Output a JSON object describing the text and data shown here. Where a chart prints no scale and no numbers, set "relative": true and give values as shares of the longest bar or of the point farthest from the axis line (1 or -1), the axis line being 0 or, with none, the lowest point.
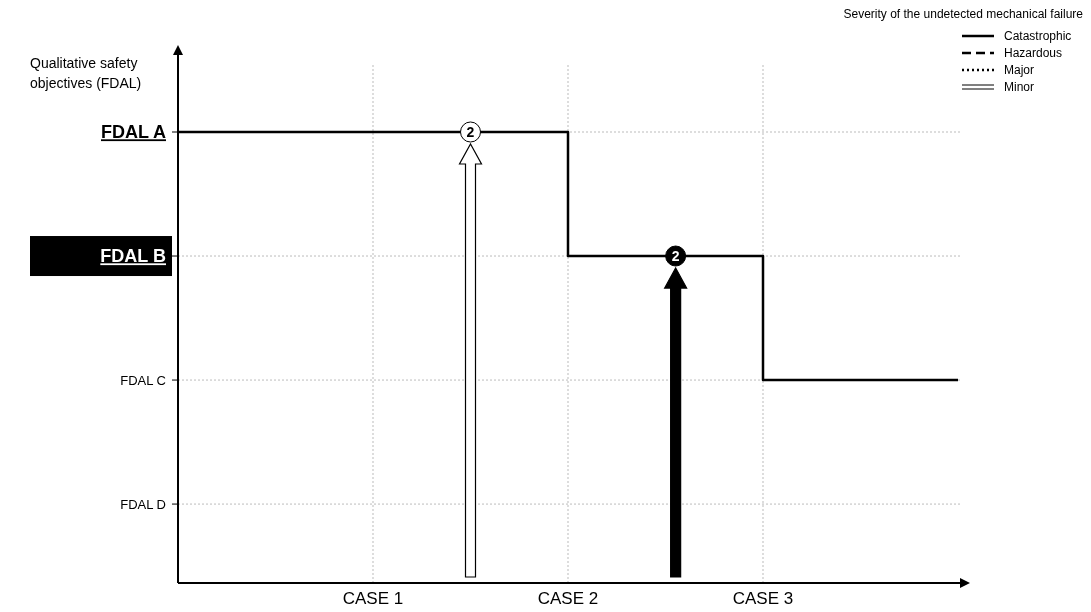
{
  "chart_data": {
    "type": "step",
    "relative": true,
    "ylabel": "Qualitative safety objectives (FDAL)",
    "legend_title": "Severity of the undetected mechanical failure",
    "legend": "top right",
    "grid": true,
    "categories": [
      null,
      null,
      "CASE 1",
      null,
      "CASE 2",
      null,
      "CASE 3",
      null,
      null
    ],
    "series": [
      {
        "name": "Catastrophic",
        "color": "#000000",
        "line_style": "solid",
        "values": [
          1,
          1,
          1,
          1,
          0.725,
          0.725,
          0.45,
          0.45,
          0.45
        ]
      },
      {
        "name": "Hazardous",
        "color": "#000000",
        "line_style": "dashed",
        "values": [
          null,
          null,
          null,
          null,
          null,
          null,
          null,
          null,
          null
        ]
      },
      {
        "name": "Major",
        "color": "#000000",
        "line_style": "dotted",
        "values": [
          null,
          null,
          null,
          null,
          null,
          null,
          null,
          null,
          null
        ]
      },
      {
        "name": "Minor",
        "color": "#000000",
        "line_style": "double",
        "values": [
          null,
          null,
          null,
          null,
          null,
          null,
          null,
          null,
          null
        ]
      }
    ],
    "annotations": [
      "FDAL A",
      "FDAL B",
      "FDAL C",
      "FDAL D",
      "2",
      "2"
    ]
  }
}
